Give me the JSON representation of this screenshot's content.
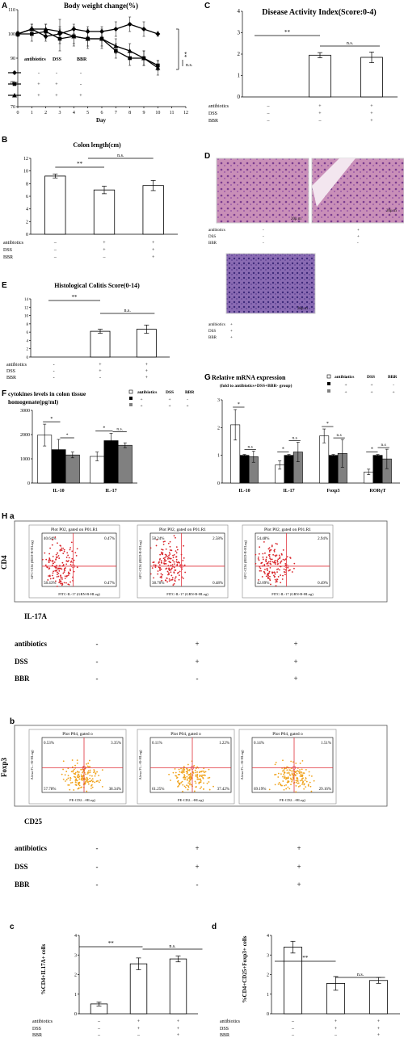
{
  "panel_letters": {
    "A": "A",
    "B": "B",
    "C": "C",
    "D": "D",
    "E": "E",
    "F": "F",
    "G": "G",
    "H": "H",
    "a": "a",
    "b": "b",
    "c": "c",
    "d": "d"
  },
  "treatment_labels": {
    "antibiotics": "antibiotics",
    "dss": "DSS",
    "bbr": "BBR"
  },
  "sign": {
    "minus": "–",
    "plus": "+",
    "dash": "-"
  },
  "sig": {
    "double": "**",
    "single": "*",
    "ns": "n.s."
  },
  "panelA": {
    "legend": {
      "antibiotics": "antibiotics",
      "dss": "DSS",
      "bbr": "BBR",
      "rows": [
        [
          "-",
          "-",
          "-"
        ],
        [
          "+",
          "+",
          "-"
        ],
        [
          "+",
          "+",
          "+"
        ]
      ]
    }
  },
  "panelD": {
    "scalebar": "20μ m"
  },
  "panelF": {
    "legend_header": [
      "antibiotics",
      "DSS",
      "BBR"
    ],
    "legend_rows": [
      [
        "+",
        "-",
        "-"
      ],
      [
        "+",
        "+",
        "-"
      ],
      [
        "+",
        "+",
        "+"
      ]
    ]
  },
  "panelG": {
    "legend_header": [
      "antibiotics",
      "DSS",
      "BBR"
    ],
    "legend_rows": [
      [
        "+",
        "-",
        "-"
      ],
      [
        "+",
        "+",
        "-"
      ],
      [
        "+",
        "+",
        "+"
      ]
    ]
  },
  "panelHa": {
    "ylabel": "CD4",
    "xlabel": "IL-17A",
    "plot_title": "Plot P02, gated on P01.R1",
    "axis_y": "APC-CD4 (RED-R-HLog)",
    "axis_x": "FITC-IL-17 (GRN-B-HLog)",
    "quadrants": [
      [
        "40.64%",
        "0.47%",
        "58.43%",
        "0.47%"
      ],
      [
        "58.24%",
        "2.58%",
        "38.70%",
        "0.48%"
      ],
      [
        "54.48%",
        "2.94%",
        "42.09%",
        "0.49%"
      ]
    ],
    "treatments": [
      [
        "-",
        "+",
        "+"
      ],
      [
        "-",
        "+",
        "+"
      ],
      [
        "-",
        "-",
        "+"
      ]
    ]
  },
  "panelHb": {
    "ylabel": "Foxp3",
    "xlabel": "CD25",
    "plot_title": "Plot P04, gated o",
    "axis_y": "Alexa Fl...-B-HLog)",
    "axis_x": "PE-CD2...-HLog)",
    "ticks": [
      "10⁰",
      "10¹",
      "10²",
      "10³",
      "10⁴"
    ],
    "quadrants": [
      [
        "0.53%",
        "3.35%",
        "57.78%",
        "38.34%"
      ],
      [
        "0.11%",
        "1.22%",
        "61.25%",
        "37.42%"
      ],
      [
        "0.14%",
        "1.51%",
        "69.19%",
        "29.16%"
      ]
    ],
    "treatments": [
      [
        "-",
        "+",
        "+"
      ],
      [
        "-",
        "+",
        "+"
      ],
      [
        "-",
        "-",
        "+"
      ]
    ]
  },
  "chart_data": [
    {
      "panel": "A",
      "type": "line",
      "title": "Body weight change(%)",
      "xlabel": "Day",
      "ylabel": "",
      "x": [
        0,
        1,
        2,
        3,
        4,
        5,
        6,
        7,
        8,
        9,
        10
      ],
      "xlim": [
        0,
        12
      ],
      "ylim": [
        70,
        110
      ],
      "yticks": [
        70,
        80,
        90,
        100,
        110
      ],
      "xticks": [
        0,
        1,
        2,
        3,
        4,
        5,
        6,
        7,
        8,
        9,
        10,
        11,
        12
      ],
      "series": [
        {
          "marker": "diamond",
          "values": [
            100,
            102,
            99,
            100,
            102,
            101,
            101,
            102,
            104,
            102,
            100
          ],
          "err": [
            1,
            2,
            2,
            2,
            2,
            2,
            2,
            3,
            3,
            3,
            1
          ]
        },
        {
          "marker": "square",
          "values": [
            100,
            100,
            101,
            98,
            99,
            98,
            98,
            93,
            90,
            90,
            87
          ],
          "err": [
            1,
            3,
            3,
            5,
            3,
            3,
            3,
            3,
            3,
            3,
            2
          ]
        },
        {
          "marker": "triangle",
          "values": [
            100,
            102,
            102,
            101,
            99,
            98,
            98,
            95,
            93,
            90,
            86
          ],
          "err": [
            1,
            2,
            2,
            5,
            4,
            4,
            4,
            3,
            3,
            3,
            3
          ]
        }
      ],
      "annotations": [
        "**",
        "n.s."
      ]
    },
    {
      "panel": "B",
      "type": "bar",
      "title": "Colon length(cm)",
      "categories": [
        "antibiotics-",
        "antibiotics+DSS",
        "antibiotics+DSS+BBR"
      ],
      "values": [
        9.2,
        7.0,
        7.7
      ],
      "err": [
        0.3,
        0.6,
        0.8
      ],
      "ylim": [
        0,
        12
      ],
      "yticks": [
        0,
        2,
        4,
        6,
        8,
        10,
        12
      ],
      "treatments": [
        [
          "–",
          "+",
          "+"
        ],
        [
          "–",
          "+",
          "+"
        ],
        [
          "–",
          "–",
          "+"
        ]
      ],
      "annotations": [
        "**",
        "n.s."
      ]
    },
    {
      "panel": "C",
      "type": "bar",
      "title": "Disease Activity Index(Score:0-4)",
      "categories": [
        "antibiotics-",
        "antibiotics+DSS",
        "antibiotics+DSS+BBR"
      ],
      "values": [
        0,
        1.95,
        1.85
      ],
      "err": [
        0,
        0.12,
        0.25
      ],
      "ylim": [
        0,
        4
      ],
      "yticks": [
        0,
        1,
        2,
        3,
        4
      ],
      "treatments": [
        [
          "–",
          "+",
          "+"
        ],
        [
          "–",
          "+",
          "+"
        ],
        [
          "–",
          "–",
          "+"
        ]
      ],
      "annotations": [
        "**",
        "n.s."
      ]
    },
    {
      "panel": "E",
      "type": "bar",
      "title": "Histological Colitis Score(0-14)",
      "categories": [
        "antibiotics-",
        "antibiotics+DSS",
        "antibiotics+DSS+BBR"
      ],
      "values": [
        0,
        6.2,
        6.7
      ],
      "err": [
        0,
        0.5,
        1.0
      ],
      "ylim": [
        0,
        14
      ],
      "yticks": [
        0,
        2,
        4,
        6,
        8,
        10,
        12,
        14
      ],
      "treatments": [
        [
          "-",
          "+",
          "+"
        ],
        [
          "-",
          "+",
          "+"
        ],
        [
          "-",
          "-",
          "+"
        ]
      ],
      "annotations": [
        "**",
        "n.s."
      ]
    },
    {
      "panel": "F",
      "type": "bar",
      "title": "cytokines levels in colon tissue homogenate(pg/ml)",
      "categories": [
        "IL-10",
        "IL-17"
      ],
      "ylim": [
        0,
        3000
      ],
      "yticks": [
        0,
        1000,
        2000,
        3000
      ],
      "series": [
        {
          "color": "#ffffff",
          "values": [
            1980,
            1100
          ],
          "err": [
            450,
            180
          ]
        },
        {
          "color": "#000000",
          "values": [
            1380,
            1750
          ],
          "err": [
            420,
            300
          ]
        },
        {
          "color": "#808080",
          "values": [
            1160,
            1560
          ],
          "err": [
            120,
            100
          ]
        }
      ],
      "annotations": [
        "*",
        "*",
        "*",
        "n.s."
      ]
    },
    {
      "panel": "G",
      "type": "bar",
      "title": "Relative mRNA expression",
      "subtitle": "(fold to antibiotics+DSS+BBR- group)",
      "categories": [
        "IL-10",
        "IL-17",
        "Foxp3",
        "RORγT"
      ],
      "ylim": [
        0,
        3
      ],
      "yticks": [
        0,
        1,
        2,
        3
      ],
      "series": [
        {
          "color": "#ffffff",
          "values": [
            2.1,
            0.65,
            1.7,
            0.4
          ],
          "err": [
            0.55,
            0.15,
            0.25,
            0.1
          ]
        },
        {
          "color": "#000000",
          "values": [
            1.0,
            1.0,
            1.0,
            1.0
          ],
          "err": [
            0.03,
            0.03,
            0.03,
            0.03
          ]
        },
        {
          "color": "#808080",
          "values": [
            0.95,
            1.12,
            1.07,
            0.87
          ],
          "err": [
            0.2,
            0.35,
            0.5,
            0.35
          ]
        }
      ],
      "annotations": [
        "*",
        "n.s",
        "*",
        "n.s",
        "*",
        "n.s",
        "*",
        "n.s"
      ]
    },
    {
      "panel": "Hc",
      "type": "bar",
      "ylabel": "%CD4+IL17A+ cells",
      "categories": [
        "antibiotics-",
        "antibiotics+DSS",
        "antibiotics+DSS+BBR"
      ],
      "values": [
        0.5,
        2.55,
        2.8
      ],
      "err": [
        0.1,
        0.3,
        0.15
      ],
      "ylim": [
        0,
        4
      ],
      "yticks": [
        0,
        1,
        2,
        3,
        4
      ],
      "treatments": [
        [
          "–",
          "+",
          "+"
        ],
        [
          "–",
          "+",
          "+"
        ],
        [
          "–",
          "–",
          "+"
        ]
      ],
      "annotations": [
        "**",
        "n.s."
      ]
    },
    {
      "panel": "Hd",
      "type": "bar",
      "ylabel": "%CD4+CD25+Foxp3+ cells",
      "categories": [
        "antibiotics-",
        "antibiotics+DSS",
        "antibiotics+DSS+BBR"
      ],
      "values": [
        3.4,
        1.55,
        1.7
      ],
      "err": [
        0.3,
        0.35,
        0.15
      ],
      "ylim": [
        0,
        4
      ],
      "yticks": [
        0,
        1,
        2,
        3,
        4
      ],
      "treatments": [
        [
          "–",
          "+",
          "+"
        ],
        [
          "–",
          "+",
          "+"
        ],
        [
          "–",
          "–",
          "+"
        ]
      ],
      "annotations": [
        "**",
        "n.s."
      ]
    }
  ]
}
